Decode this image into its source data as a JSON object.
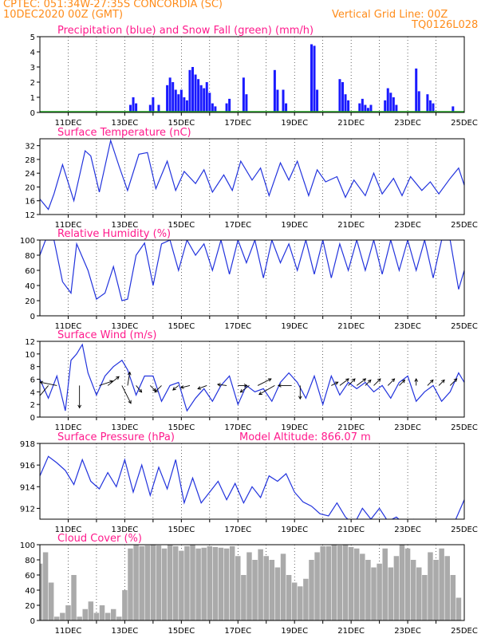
{
  "header": {
    "line1": "CPTEC:   051:34W-27:35S   CONCORDIA (SC)",
    "line2": "10DEC2020 00Z (GMT)",
    "right1": "Vertical Grid Line: 00Z",
    "right2": "TQ0126L028"
  },
  "colors": {
    "precip": "#1a1aff",
    "snow": "#22aa22",
    "line": "#2233dd",
    "cloud": "#aaaaaa",
    "title": "#ff1a8c",
    "header": "#ff8c1a"
  },
  "chart_data": [
    {
      "type": "bar",
      "title": "Precipitation (blue) and Snow Fall (green) (mm/h)",
      "ylim": [
        0,
        5
      ],
      "yticks": [
        0,
        1,
        2,
        3,
        4,
        5
      ],
      "x_dates": [
        "11DEC",
        "13DEC",
        "15DEC",
        "17DEC",
        "19DEC",
        "21DEC",
        "23DEC",
        "25DEC"
      ],
      "x_range_days": [
        10,
        25
      ],
      "x": [
        13.2,
        13.3,
        13.4,
        13.9,
        14.0,
        14.2,
        14.5,
        14.6,
        14.7,
        14.8,
        14.9,
        15.0,
        15.1,
        15.2,
        15.3,
        15.4,
        15.5,
        15.6,
        15.7,
        15.8,
        15.9,
        16.0,
        16.1,
        16.2,
        16.6,
        16.7,
        17.2,
        17.3,
        18.3,
        18.4,
        18.6,
        18.7,
        19.6,
        19.7,
        19.8,
        20.6,
        20.7,
        20.8,
        20.9,
        21.3,
        21.4,
        21.5,
        21.6,
        21.7,
        22.2,
        22.3,
        22.4,
        22.5,
        22.6,
        23.3,
        23.4,
        23.7,
        23.8,
        23.9,
        24.6
      ],
      "values": [
        0.5,
        1.0,
        0.6,
        0.5,
        1.0,
        0.5,
        1.8,
        2.3,
        2.0,
        1.5,
        1.2,
        1.5,
        1.0,
        0.8,
        2.8,
        3.0,
        2.5,
        2.2,
        1.8,
        1.6,
        2.0,
        1.3,
        0.6,
        0.4,
        0.6,
        0.9,
        2.3,
        1.2,
        2.8,
        1.5,
        1.5,
        0.6,
        4.5,
        4.4,
        1.5,
        2.2,
        2.0,
        1.2,
        0.8,
        0.6,
        0.9,
        0.5,
        0.3,
        0.5,
        0.8,
        1.6,
        1.3,
        1.0,
        0.5,
        2.9,
        1.4,
        1.2,
        0.8,
        0.6,
        0.4
      ],
      "snow": "0"
    },
    {
      "type": "line",
      "title": "Surface Temperature (nC)",
      "ylim": [
        12,
        34
      ],
      "yticks": [
        12,
        16,
        20,
        24,
        28,
        32
      ],
      "x_dates": [
        "11DEC",
        "13DEC",
        "15DEC",
        "17DEC",
        "19DEC",
        "21DEC",
        "23DEC",
        "25DEC"
      ],
      "x": [
        10.0,
        10.3,
        10.5,
        10.8,
        11.2,
        11.6,
        11.8,
        12.1,
        12.5,
        12.8,
        13.1,
        13.5,
        13.8,
        14.1,
        14.5,
        14.8,
        15.1,
        15.5,
        15.8,
        16.1,
        16.5,
        16.8,
        17.1,
        17.5,
        17.8,
        18.1,
        18.5,
        18.8,
        19.1,
        19.5,
        19.8,
        20.1,
        20.5,
        20.8,
        21.1,
        21.5,
        21.8,
        22.1,
        22.5,
        22.8,
        23.1,
        23.5,
        23.8,
        24.1,
        24.5,
        24.8,
        25.0
      ],
      "values": [
        16.5,
        13.5,
        18.0,
        26.5,
        16.0,
        30.5,
        29.0,
        18.5,
        33.5,
        26.0,
        19.0,
        29.5,
        30.0,
        19.5,
        27.5,
        19.0,
        24.5,
        21.0,
        25.0,
        18.5,
        23.5,
        19.0,
        27.5,
        22.0,
        25.5,
        17.5,
        27.0,
        22.0,
        27.5,
        17.5,
        25.0,
        21.5,
        23.0,
        17.0,
        22.0,
        17.5,
        24.0,
        18.0,
        22.5,
        17.5,
        23.0,
        19.0,
        21.5,
        18.0,
        22.5,
        25.5,
        20.5
      ]
    },
    {
      "type": "line",
      "title": "Relative Humidity (%)",
      "ylim": [
        0,
        100
      ],
      "yticks": [
        0,
        20,
        40,
        60,
        80,
        100
      ],
      "x_dates": [
        "11DEC",
        "13DEC",
        "15DEC",
        "17DEC",
        "19DEC",
        "21DEC",
        "23DEC",
        "25DEC"
      ],
      "x": [
        10.0,
        10.2,
        10.5,
        10.8,
        11.1,
        11.3,
        11.7,
        12.0,
        12.3,
        12.6,
        12.9,
        13.1,
        13.4,
        13.7,
        14.0,
        14.3,
        14.6,
        14.9,
        15.2,
        15.5,
        15.8,
        16.1,
        16.4,
        16.7,
        17.0,
        17.3,
        17.6,
        17.9,
        18.2,
        18.5,
        18.8,
        19.1,
        19.4,
        19.7,
        20.0,
        20.3,
        20.6,
        20.9,
        21.2,
        21.5,
        21.8,
        22.1,
        22.4,
        22.7,
        23.0,
        23.3,
        23.6,
        23.9,
        24.2,
        24.5,
        24.8,
        25.0
      ],
      "values": [
        80,
        100,
        100,
        45,
        30,
        95,
        60,
        22,
        30,
        65,
        20,
        22,
        80,
        96,
        40,
        95,
        100,
        60,
        100,
        80,
        95,
        60,
        100,
        55,
        100,
        70,
        100,
        50,
        100,
        70,
        95,
        60,
        100,
        55,
        100,
        50,
        95,
        60,
        100,
        60,
        100,
        55,
        100,
        60,
        100,
        60,
        100,
        50,
        100,
        100,
        35,
        60
      ]
    },
    {
      "type": "line",
      "title": "Surface Wind (m/s)",
      "ylim": [
        0,
        12
      ],
      "yticks": [
        0,
        2,
        4,
        6,
        8,
        10,
        12
      ],
      "x_dates": [
        "11DEC",
        "13DEC",
        "15DEC",
        "17DEC",
        "19DEC",
        "21DEC",
        "23DEC",
        "25DEC"
      ],
      "x": [
        10.0,
        10.3,
        10.6,
        10.9,
        11.1,
        11.3,
        11.5,
        11.7,
        12.0,
        12.3,
        12.6,
        12.9,
        13.1,
        13.4,
        13.7,
        14.0,
        14.3,
        14.6,
        14.9,
        15.2,
        15.5,
        15.8,
        16.1,
        16.4,
        16.7,
        17.0,
        17.3,
        17.6,
        17.9,
        18.2,
        18.5,
        18.8,
        19.1,
        19.4,
        19.7,
        20.0,
        20.3,
        20.6,
        20.9,
        21.2,
        21.5,
        21.8,
        22.1,
        22.4,
        22.7,
        23.0,
        23.3,
        23.6,
        23.9,
        24.2,
        24.5,
        24.8,
        25.0
      ],
      "values": [
        6.0,
        3.0,
        6.5,
        1.0,
        9.0,
        10.0,
        11.5,
        7.0,
        3.5,
        6.5,
        8.0,
        9.0,
        7.5,
        3.5,
        6.5,
        6.5,
        2.5,
        5.0,
        5.5,
        1.0,
        3.0,
        4.5,
        2.5,
        5.0,
        6.5,
        2.0,
        5.0,
        4.0,
        4.5,
        2.5,
        5.5,
        7.0,
        5.5,
        3.0,
        6.5,
        2.0,
        6.5,
        3.5,
        5.5,
        4.5,
        5.5,
        4.0,
        5.0,
        3.0,
        5.5,
        6.5,
        2.5,
        4.0,
        5.0,
        2.5,
        4.0,
        7.0,
        5.5
      ],
      "arrows": [
        {
          "day": 10.3,
          "u": -1.0,
          "v": -1.2
        },
        {
          "day": 10.6,
          "u": -1.5,
          "v": 0.3
        },
        {
          "day": 11.4,
          "u": 0.0,
          "v": -2.0
        },
        {
          "day": 12.1,
          "u": 1.2,
          "v": 0.4
        },
        {
          "day": 12.4,
          "u": 1.0,
          "v": 0.8
        },
        {
          "day": 12.9,
          "u": 0.8,
          "v": -1.6
        },
        {
          "day": 13.1,
          "u": 0.2,
          "v": 1.2
        },
        {
          "day": 13.4,
          "u": 0.5,
          "v": -0.6
        },
        {
          "day": 13.9,
          "u": 0.5,
          "v": -0.5
        },
        {
          "day": 14.3,
          "u": -0.6,
          "v": -0.6
        },
        {
          "day": 14.9,
          "u": -0.5,
          "v": -0.4
        },
        {
          "day": 15.3,
          "u": -0.8,
          "v": -0.2
        },
        {
          "day": 15.9,
          "u": -0.8,
          "v": -0.3
        },
        {
          "day": 16.6,
          "u": -0.8,
          "v": 0.1
        },
        {
          "day": 17.0,
          "u": 0.8,
          "v": 0.0
        },
        {
          "day": 17.4,
          "u": -0.8,
          "v": -0.6
        },
        {
          "day": 17.7,
          "u": 1.2,
          "v": 0.6
        },
        {
          "day": 18.3,
          "u": -1.4,
          "v": -0.8
        },
        {
          "day": 18.9,
          "u": -1.2,
          "v": 0.0
        },
        {
          "day": 19.2,
          "u": 0.0,
          "v": -1.2
        },
        {
          "day": 20.3,
          "u": 0.6,
          "v": 0.3
        },
        {
          "day": 20.6,
          "u": 0.8,
          "v": 0.6
        },
        {
          "day": 20.9,
          "u": 0.6,
          "v": 0.6
        },
        {
          "day": 21.2,
          "u": 0.8,
          "v": 0.6
        },
        {
          "day": 21.5,
          "u": 0.5,
          "v": 0.5
        },
        {
          "day": 21.8,
          "u": 0.6,
          "v": 0.6
        },
        {
          "day": 22.3,
          "u": 0.6,
          "v": 0.6
        },
        {
          "day": 22.7,
          "u": 0.5,
          "v": 0.5
        },
        {
          "day": 23.3,
          "u": 0.0,
          "v": 0.6
        },
        {
          "day": 23.7,
          "u": 0.5,
          "v": 0.5
        },
        {
          "day": 24.1,
          "u": 0.5,
          "v": 0.5
        },
        {
          "day": 24.5,
          "u": 0.6,
          "v": 0.6
        }
      ]
    },
    {
      "type": "line",
      "title": "Surface Pressure (hPa)",
      "subtitle": "Model Altitude: 866.07 m",
      "ylim": [
        911,
        918
      ],
      "yticks": [
        912,
        914,
        916,
        918
      ],
      "x_dates": [
        "11DEC",
        "13DEC",
        "15DEC",
        "17DEC",
        "19DEC",
        "21DEC",
        "23DEC",
        "25DEC"
      ],
      "x": [
        10.0,
        10.3,
        10.6,
        10.9,
        11.2,
        11.5,
        11.8,
        12.1,
        12.4,
        12.7,
        13.0,
        13.3,
        13.6,
        13.9,
        14.2,
        14.5,
        14.8,
        15.1,
        15.4,
        15.7,
        16.0,
        16.3,
        16.6,
        16.9,
        17.2,
        17.5,
        17.8,
        18.1,
        18.4,
        18.7,
        19.0,
        19.3,
        19.6,
        19.9,
        20.2,
        20.5,
        20.8,
        21.1,
        21.4,
        21.7,
        22.0,
        22.3,
        22.6,
        22.9,
        23.2,
        23.5,
        23.8,
        24.1,
        24.4,
        24.7,
        25.0
      ],
      "values": [
        915.0,
        916.8,
        916.2,
        915.5,
        914.2,
        916.5,
        914.5,
        913.8,
        915.3,
        914.0,
        916.5,
        913.5,
        916.0,
        913.2,
        915.8,
        913.8,
        916.5,
        912.5,
        914.8,
        912.5,
        913.5,
        914.5,
        912.8,
        914.3,
        912.5,
        914.0,
        913.0,
        915.0,
        914.5,
        915.2,
        913.5,
        912.6,
        912.2,
        911.5,
        911.3,
        912.5,
        911.2,
        910.5,
        912.0,
        911.0,
        912.0,
        910.8,
        911.2,
        910.5,
        911.0,
        910.8,
        911.0,
        910.5,
        910.8,
        911.0,
        912.8
      ]
    },
    {
      "type": "bar",
      "title": "Cloud Cover (%)",
      "ylim": [
        0,
        100
      ],
      "yticks": [
        0,
        20,
        40,
        60,
        80,
        100
      ],
      "x_dates": [
        "11DEC",
        "13DEC",
        "15DEC",
        "17DEC",
        "19DEC",
        "21DEC",
        "23DEC",
        "25DEC"
      ],
      "x": [
        10.0,
        10.2,
        10.4,
        10.6,
        10.8,
        11.0,
        11.2,
        11.4,
        11.6,
        11.8,
        12.0,
        12.2,
        12.4,
        12.6,
        12.8,
        13.0,
        13.2,
        13.4,
        13.6,
        13.8,
        14.0,
        14.2,
        14.4,
        14.6,
        14.8,
        15.0,
        15.2,
        15.4,
        15.6,
        15.8,
        16.0,
        16.2,
        16.4,
        16.6,
        16.8,
        17.0,
        17.2,
        17.4,
        17.6,
        17.8,
        18.0,
        18.2,
        18.4,
        18.6,
        18.8,
        19.0,
        19.2,
        19.4,
        19.6,
        19.8,
        20.0,
        20.2,
        20.4,
        20.6,
        20.8,
        21.0,
        21.2,
        21.4,
        21.6,
        21.8,
        22.0,
        22.2,
        22.4,
        22.6,
        22.8,
        23.0,
        23.2,
        23.4,
        23.6,
        23.8,
        24.0,
        24.2,
        24.4,
        24.6,
        24.8
      ],
      "values": [
        75,
        90,
        50,
        5,
        10,
        20,
        60,
        5,
        15,
        25,
        10,
        20,
        10,
        15,
        5,
        40,
        95,
        100,
        98,
        99,
        100,
        99,
        95,
        100,
        98,
        92,
        98,
        100,
        95,
        96,
        98,
        97,
        96,
        95,
        98,
        85,
        60,
        90,
        80,
        94,
        85,
        80,
        70,
        88,
        60,
        50,
        45,
        55,
        80,
        90,
        98,
        98,
        100,
        99,
        100,
        97,
        95,
        88,
        80,
        70,
        75,
        95,
        70,
        85,
        100,
        95,
        80,
        70,
        60,
        90,
        80,
        95,
        85,
        60,
        30
      ]
    }
  ]
}
